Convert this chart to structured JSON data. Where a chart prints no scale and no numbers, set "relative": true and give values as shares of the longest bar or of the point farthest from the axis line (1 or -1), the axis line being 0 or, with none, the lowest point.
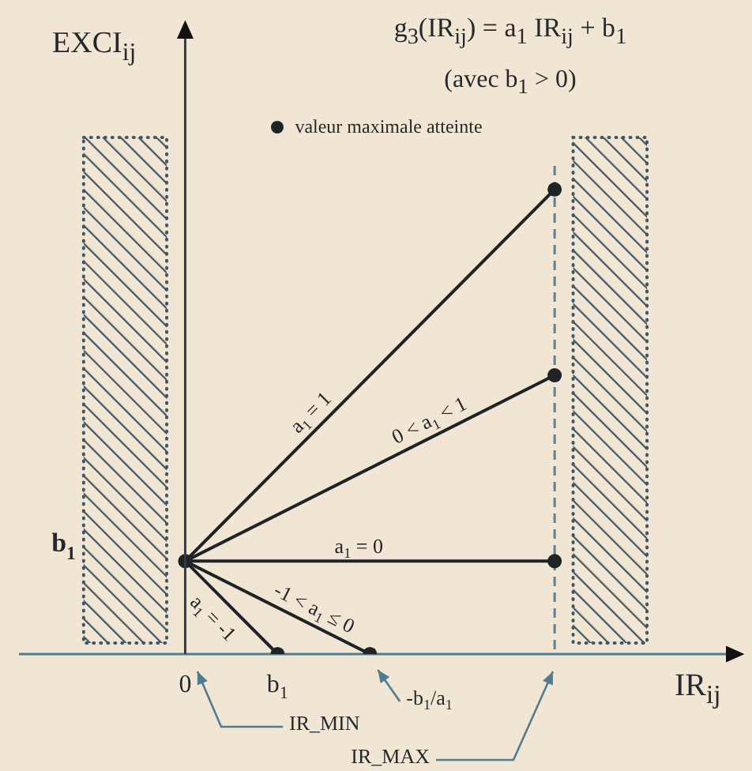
{
  "chart_data": {
    "type": "line",
    "title": "g$_{3}$(IR$_{ij}$) = a$_{1}$ IR$_{ij}$ + b$_{1}$",
    "subtitle": "(avec b$_{1}$ > 0)",
    "xlabel": "IR$_{ij}$",
    "ylabel": "EXCI$_{ij}$",
    "relative": true,
    "xlim": [
      -1.8,
      6
    ],
    "xticks": [
      0,
      {
        "value": 1,
        "label": "b$_{1}$"
      }
    ],
    "series": [
      {
        "name": "a$_{1}$ = 1",
        "color": "#1d2326",
        "x": [
          0,
          4
        ],
        "values": [
          0.2,
          1
        ]
      },
      {
        "name": "0 < a$_{1}$ < 1",
        "color": "#1d2326",
        "x": [
          0,
          4
        ],
        "values": [
          0.2,
          0.6
        ]
      },
      {
        "name": "a$_{1}$ = 0",
        "color": "#1d2326",
        "x": [
          0,
          4
        ],
        "values": [
          0.2,
          0.2
        ]
      },
      {
        "name": "-1 < a$_{1}$ ≤ 0",
        "color": "#1d2326",
        "x": [
          0,
          2
        ],
        "values": [
          0.2,
          0
        ]
      },
      {
        "name": "a$_{1}$ = -1",
        "color": "#1d2326",
        "x": [
          0,
          1
        ],
        "values": [
          0.2,
          0
        ]
      },
      {
        "name": "valeur maximale atteinte",
        "type": "scatter",
        "marker": "circle",
        "color": "#1d2326",
        "x": [
          0,
          4,
          4,
          4,
          2,
          1
        ],
        "values": [
          0.2,
          1,
          0.6,
          0.2,
          0,
          0
        ]
      }
    ],
    "bands": [
      {
        "axis": "x",
        "from": -1.1,
        "to": -0.2,
        "color": "#3e5563"
      },
      {
        "axis": "x",
        "from": 4.2,
        "to": 5,
        "color": "#3e5563"
      }
    ],
    "ref_lines": [
      {
        "axis": "x",
        "value": 4,
        "line_style": "dashed",
        "color": "#5a8196"
      }
    ],
    "annotations": [
      "b$_{1}$",
      {
        "text": "-b$_{1}$/a$_{1}$",
        "x": 2,
        "y": 0
      },
      "IR_MIN",
      "IR_MAX"
    ],
    "legend": "top"
  }
}
